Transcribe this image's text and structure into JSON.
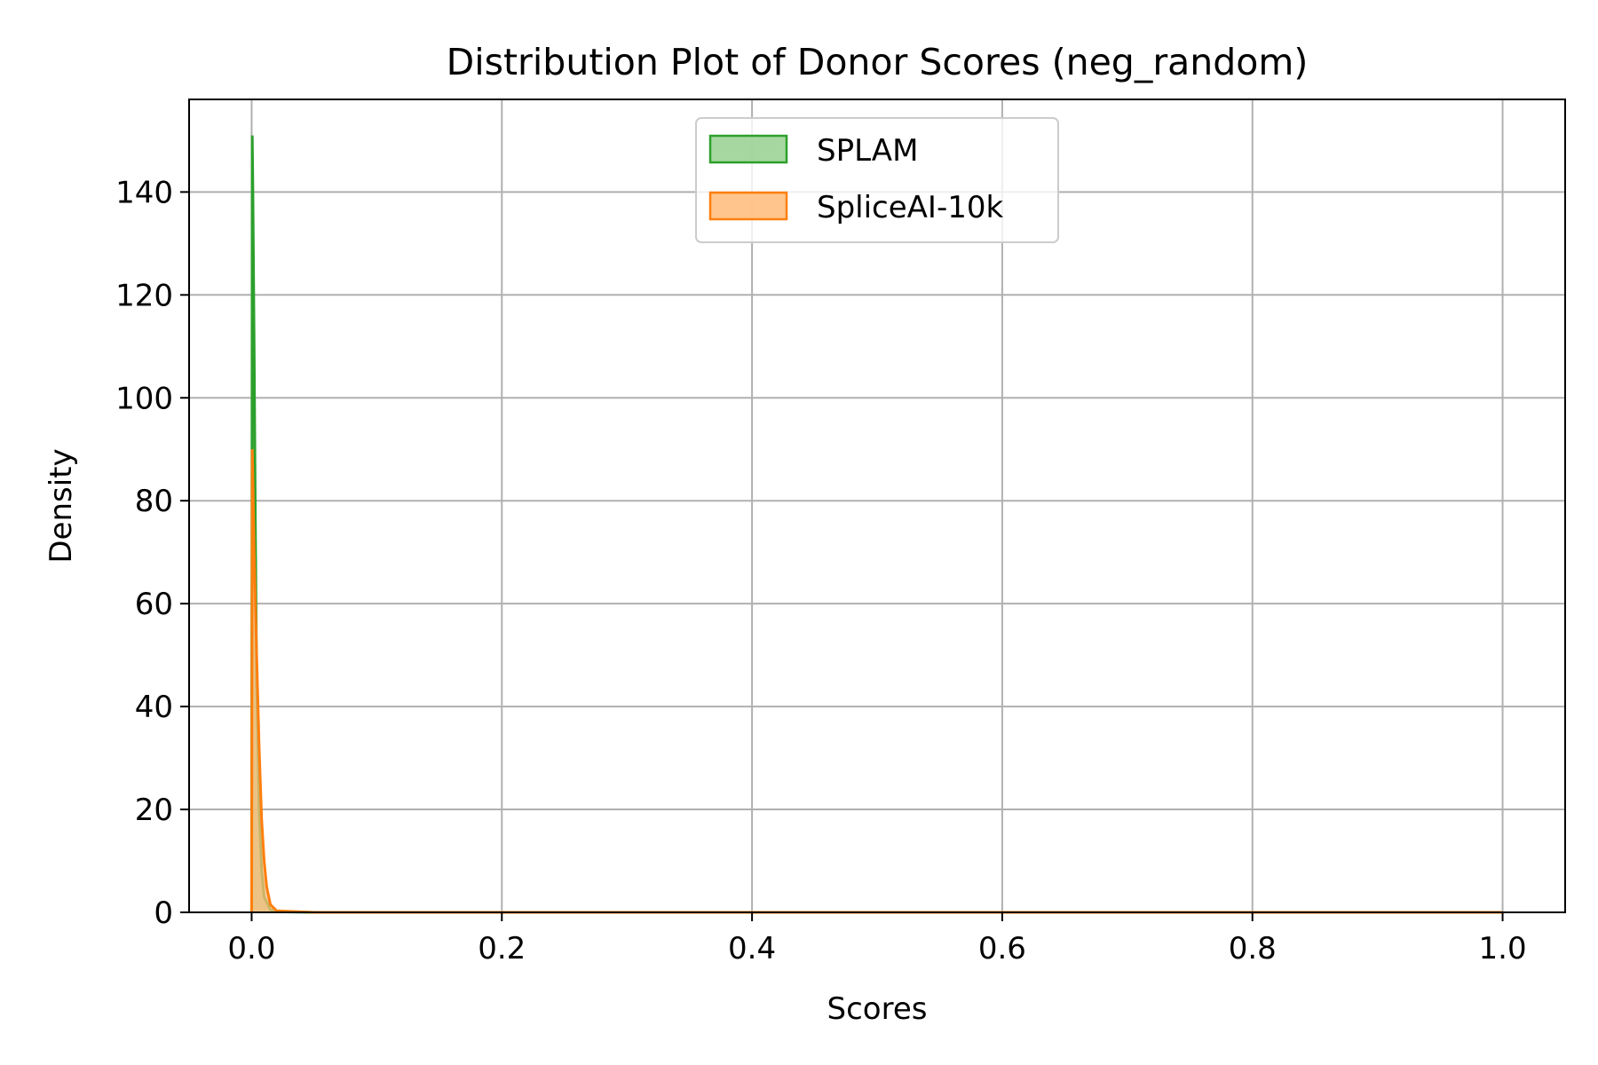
{
  "chart_data": {
    "type": "area",
    "title": "Distribution Plot of Donor Scores (neg_random)",
    "xlabel": "Scores",
    "ylabel": "Density",
    "xlim": [
      -0.05,
      1.05
    ],
    "ylim": [
      0,
      158
    ],
    "xticks": [
      0.0,
      0.2,
      0.4,
      0.6,
      0.8,
      1.0
    ],
    "xtick_labels": [
      "0.0",
      "0.2",
      "0.4",
      "0.6",
      "0.8",
      "1.0"
    ],
    "yticks": [
      0,
      20,
      40,
      60,
      80,
      100,
      120,
      140
    ],
    "ytick_labels": [
      "0",
      "20",
      "40",
      "60",
      "80",
      "100",
      "120",
      "140"
    ],
    "grid": true,
    "legend_position": "top-center",
    "series": [
      {
        "name": "SPLAM",
        "color": "#2ca02c",
        "fill": "#98d08f",
        "x": [
          0.0,
          0.0005,
          0.001,
          0.002,
          0.003,
          0.004,
          0.006,
          0.008,
          0.01,
          0.015,
          0.02,
          0.05,
          0.1,
          0.3,
          0.5,
          0.7,
          0.9,
          1.0
        ],
        "y": [
          0,
          151,
          140,
          110,
          75,
          45,
          20,
          8,
          3,
          0.5,
          0.1,
          0,
          0,
          0,
          0,
          0,
          0,
          0
        ]
      },
      {
        "name": "SpliceAI-10k",
        "color": "#ff7f0e",
        "fill": "#ffbb78",
        "x": [
          0.0,
          0.0005,
          0.001,
          0.002,
          0.004,
          0.006,
          0.008,
          0.01,
          0.012,
          0.015,
          0.02,
          0.05,
          0.1,
          0.3,
          0.5,
          0.7,
          0.9,
          1.0
        ],
        "y": [
          0,
          90,
          84,
          70,
          50,
          32,
          18,
          10,
          5,
          1.5,
          0.3,
          0,
          0,
          0,
          0,
          0,
          0,
          0
        ]
      }
    ]
  }
}
